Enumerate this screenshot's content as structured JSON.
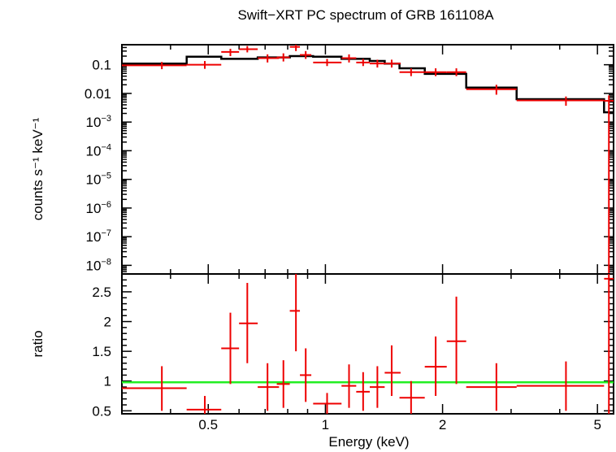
{
  "chart_data": [
    {
      "type": "line",
      "panel": "spectrum",
      "title": "Swift−XRT PC spectrum of GRB 161108A",
      "ylabel": "counts s⁻¹ keV⁻¹",
      "xscale": "log",
      "yscale": "log",
      "xlim": [
        0.3,
        5.5
      ],
      "ylim": [
        5e-09,
        0.5
      ],
      "ytick_labels": [
        {
          "base": "0.1",
          "exp": ""
        },
        {
          "base": "0.01",
          "exp": ""
        },
        {
          "base": "10",
          "exp": "−3"
        },
        {
          "base": "10",
          "exp": "−4"
        },
        {
          "base": "10",
          "exp": "−5"
        },
        {
          "base": "10",
          "exp": "−6"
        },
        {
          "base": "10",
          "exp": "−7"
        },
        {
          "base": "10",
          "exp": "−8"
        }
      ],
      "ytick_values": [
        0.1,
        0.01,
        0.001,
        0.0001,
        1e-05,
        1e-06,
        1e-07,
        1e-08
      ],
      "data_color": "#ee0000",
      "model_color": "#000000",
      "data_points": [
        {
          "x": 0.38,
          "xlo": 0.3,
          "xhi": 0.44,
          "y": 0.095,
          "ylo": 0.07,
          "yhi": 0.125
        },
        {
          "x": 0.49,
          "xlo": 0.44,
          "xhi": 0.54,
          "y": 0.1,
          "ylo": 0.072,
          "yhi": 0.135
        },
        {
          "x": 0.57,
          "xlo": 0.54,
          "xhi": 0.6,
          "y": 0.28,
          "ylo": 0.2,
          "yhi": 0.36
        },
        {
          "x": 0.63,
          "xlo": 0.6,
          "xhi": 0.67,
          "y": 0.35,
          "ylo": 0.27,
          "yhi": 0.45
        },
        {
          "x": 0.71,
          "xlo": 0.67,
          "xhi": 0.76,
          "y": 0.17,
          "ylo": 0.12,
          "yhi": 0.23
        },
        {
          "x": 0.78,
          "xlo": 0.75,
          "xhi": 0.81,
          "y": 0.18,
          "ylo": 0.13,
          "yhi": 0.25
        },
        {
          "x": 0.84,
          "xlo": 0.81,
          "xhi": 0.86,
          "y": 0.42,
          "ylo": 0.3,
          "yhi": 0.55
        },
        {
          "x": 0.89,
          "xlo": 0.86,
          "xhi": 0.92,
          "y": 0.22,
          "ylo": 0.16,
          "yhi": 0.3
        },
        {
          "x": 1.01,
          "xlo": 0.93,
          "xhi": 1.1,
          "y": 0.12,
          "ylo": 0.09,
          "yhi": 0.16
        },
        {
          "x": 1.15,
          "xlo": 1.1,
          "xhi": 1.2,
          "y": 0.17,
          "ylo": 0.12,
          "yhi": 0.23
        },
        {
          "x": 1.25,
          "xlo": 1.2,
          "xhi": 1.3,
          "y": 0.12,
          "ylo": 0.09,
          "yhi": 0.16
        },
        {
          "x": 1.36,
          "xlo": 1.3,
          "xhi": 1.42,
          "y": 0.11,
          "ylo": 0.08,
          "yhi": 0.15
        },
        {
          "x": 1.48,
          "xlo": 1.42,
          "xhi": 1.56,
          "y": 0.11,
          "ylo": 0.08,
          "yhi": 0.15
        },
        {
          "x": 1.66,
          "xlo": 1.55,
          "xhi": 1.8,
          "y": 0.055,
          "ylo": 0.04,
          "yhi": 0.075
        },
        {
          "x": 1.92,
          "xlo": 1.8,
          "xhi": 2.05,
          "y": 0.055,
          "ylo": 0.04,
          "yhi": 0.075
        },
        {
          "x": 2.17,
          "xlo": 2.05,
          "xhi": 2.3,
          "y": 0.055,
          "ylo": 0.04,
          "yhi": 0.075
        },
        {
          "x": 2.75,
          "xlo": 2.3,
          "xhi": 3.1,
          "y": 0.014,
          "ylo": 0.009,
          "yhi": 0.02
        },
        {
          "x": 4.15,
          "xlo": 3.1,
          "xhi": 5.2,
          "y": 0.0057,
          "ylo": 0.0037,
          "yhi": 0.0078
        },
        {
          "x": 5.35,
          "xlo": 5.2,
          "xhi": 5.5,
          "y": 0.0055,
          "ylo": 5e-09,
          "yhi": 0.0085
        }
      ],
      "model_steps": [
        {
          "xlo": 0.3,
          "xhi": 0.44,
          "y": 0.11
        },
        {
          "xlo": 0.44,
          "xhi": 0.54,
          "y": 0.19
        },
        {
          "xlo": 0.54,
          "xhi": 0.67,
          "y": 0.16
        },
        {
          "xlo": 0.67,
          "xhi": 0.81,
          "y": 0.18
        },
        {
          "xlo": 0.81,
          "xhi": 0.93,
          "y": 0.2
        },
        {
          "xlo": 0.93,
          "xhi": 1.1,
          "y": 0.19
        },
        {
          "xlo": 1.1,
          "xhi": 1.3,
          "y": 0.16
        },
        {
          "xlo": 1.3,
          "xhi": 1.42,
          "y": 0.135
        },
        {
          "xlo": 1.42,
          "xhi": 1.55,
          "y": 0.11
        },
        {
          "xlo": 1.55,
          "xhi": 1.8,
          "y": 0.075
        },
        {
          "xlo": 1.8,
          "xhi": 2.3,
          "y": 0.048
        },
        {
          "xlo": 2.3,
          "xhi": 3.1,
          "y": 0.016
        },
        {
          "xlo": 3.1,
          "xhi": 5.2,
          "y": 0.0063
        },
        {
          "xlo": 5.2,
          "xhi": 5.5,
          "y": 0.0022
        }
      ]
    },
    {
      "type": "scatter",
      "panel": "ratio",
      "xlabel": "Energy (keV)",
      "ylabel": "ratio",
      "xscale": "log",
      "yscale": "linear",
      "xlim": [
        0.3,
        5.5
      ],
      "ylim": [
        0.45,
        2.8
      ],
      "xtick_labels": [
        "0.5",
        "1",
        "2",
        "5"
      ],
      "xtick_values": [
        0.5,
        1,
        2,
        5
      ],
      "ytick_labels": [
        "0.5",
        "1",
        "1.5",
        "2",
        "2.5"
      ],
      "ytick_values": [
        0.5,
        1,
        1.5,
        2,
        2.5
      ],
      "reference_line": {
        "y": 0.98,
        "color": "#22ee22"
      },
      "data_color": "#ee0000",
      "data_points": [
        {
          "x": 0.38,
          "xlo": 0.3,
          "xhi": 0.44,
          "y": 0.88,
          "ylo": 0.5,
          "yhi": 1.25
        },
        {
          "x": 0.49,
          "xlo": 0.44,
          "xhi": 0.54,
          "y": 0.52,
          "ylo": 0.45,
          "yhi": 0.75
        },
        {
          "x": 0.57,
          "xlo": 0.54,
          "xhi": 0.6,
          "y": 1.55,
          "ylo": 0.95,
          "yhi": 2.15
        },
        {
          "x": 0.63,
          "xlo": 0.6,
          "xhi": 0.67,
          "y": 1.97,
          "ylo": 1.3,
          "yhi": 2.65
        },
        {
          "x": 0.71,
          "xlo": 0.67,
          "xhi": 0.76,
          "y": 0.9,
          "ylo": 0.5,
          "yhi": 1.3
        },
        {
          "x": 0.78,
          "xlo": 0.75,
          "xhi": 0.81,
          "y": 0.95,
          "ylo": 0.55,
          "yhi": 1.35
        },
        {
          "x": 0.84,
          "xlo": 0.81,
          "xhi": 0.86,
          "y": 2.18,
          "ylo": 1.5,
          "yhi": 2.8
        },
        {
          "x": 0.89,
          "xlo": 0.86,
          "xhi": 0.92,
          "y": 1.1,
          "ylo": 0.65,
          "yhi": 1.55
        },
        {
          "x": 1.01,
          "xlo": 0.93,
          "xhi": 1.1,
          "y": 0.62,
          "ylo": 0.45,
          "yhi": 0.8
        },
        {
          "x": 1.15,
          "xlo": 1.1,
          "xhi": 1.2,
          "y": 0.92,
          "ylo": 0.55,
          "yhi": 1.28
        },
        {
          "x": 1.25,
          "xlo": 1.2,
          "xhi": 1.3,
          "y": 0.82,
          "ylo": 0.5,
          "yhi": 1.15
        },
        {
          "x": 1.36,
          "xlo": 1.3,
          "xhi": 1.42,
          "y": 0.9,
          "ylo": 0.55,
          "yhi": 1.25
        },
        {
          "x": 1.48,
          "xlo": 1.42,
          "xhi": 1.56,
          "y": 1.14,
          "ylo": 0.75,
          "yhi": 1.6
        },
        {
          "x": 1.66,
          "xlo": 1.55,
          "xhi": 1.8,
          "y": 0.72,
          "ylo": 0.45,
          "yhi": 1.0
        },
        {
          "x": 1.92,
          "xlo": 1.8,
          "xhi": 2.05,
          "y": 1.24,
          "ylo": 0.75,
          "yhi": 1.75
        },
        {
          "x": 2.17,
          "xlo": 2.05,
          "xhi": 2.3,
          "y": 1.67,
          "ylo": 0.95,
          "yhi": 2.42
        },
        {
          "x": 2.75,
          "xlo": 2.3,
          "xhi": 3.1,
          "y": 0.9,
          "ylo": 0.5,
          "yhi": 1.3
        },
        {
          "x": 4.15,
          "xlo": 3.1,
          "xhi": 5.2,
          "y": 0.92,
          "ylo": 0.5,
          "yhi": 1.33
        },
        {
          "x": 5.35,
          "xlo": 5.2,
          "xhi": 5.5,
          "y": 2.72,
          "ylo": 0.45,
          "yhi": 2.8
        }
      ]
    }
  ]
}
